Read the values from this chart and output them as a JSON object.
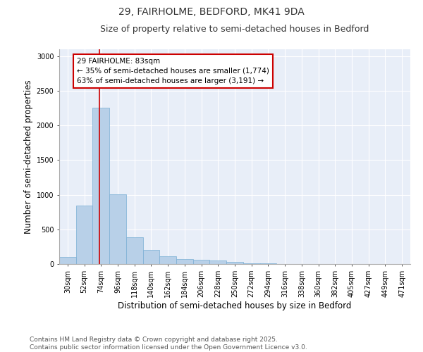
{
  "title_line1": "29, FAIRHOLME, BEDFORD, MK41 9DA",
  "title_line2": "Size of property relative to semi-detached houses in Bedford",
  "xlabel": "Distribution of semi-detached houses by size in Bedford",
  "ylabel": "Number of semi-detached properties",
  "footer": "Contains HM Land Registry data © Crown copyright and database right 2025.\nContains public sector information licensed under the Open Government Licence v3.0.",
  "bin_labels": [
    "30sqm",
    "52sqm",
    "74sqm",
    "96sqm",
    "118sqm",
    "140sqm",
    "162sqm",
    "184sqm",
    "206sqm",
    "228sqm",
    "250sqm",
    "272sqm",
    "294sqm",
    "316sqm",
    "338sqm",
    "360sqm",
    "382sqm",
    "405sqm",
    "427sqm",
    "449sqm",
    "471sqm"
  ],
  "bin_values": [
    100,
    840,
    2260,
    1010,
    390,
    200,
    110,
    75,
    65,
    55,
    35,
    15,
    10,
    5,
    3,
    2,
    1,
    1,
    0,
    0,
    0
  ],
  "bar_color": "#b8d0e8",
  "bar_edge_color": "#7aafd4",
  "highlight_color": "#cc0000",
  "annotation_text": "29 FAIRHOLME: 83sqm\n← 35% of semi-detached houses are smaller (1,774)\n63% of semi-detached houses are larger (3,191) →",
  "annotation_box_color": "#cc0000",
  "ylim": [
    0,
    3100
  ],
  "yticks": [
    0,
    500,
    1000,
    1500,
    2000,
    2500,
    3000
  ],
  "background_color": "#e8eef8",
  "grid_color": "#ffffff",
  "title_fontsize": 10,
  "subtitle_fontsize": 9,
  "axis_fontsize": 8.5,
  "tick_fontsize": 7,
  "annotation_fontsize": 7.5,
  "footer_fontsize": 6.5
}
